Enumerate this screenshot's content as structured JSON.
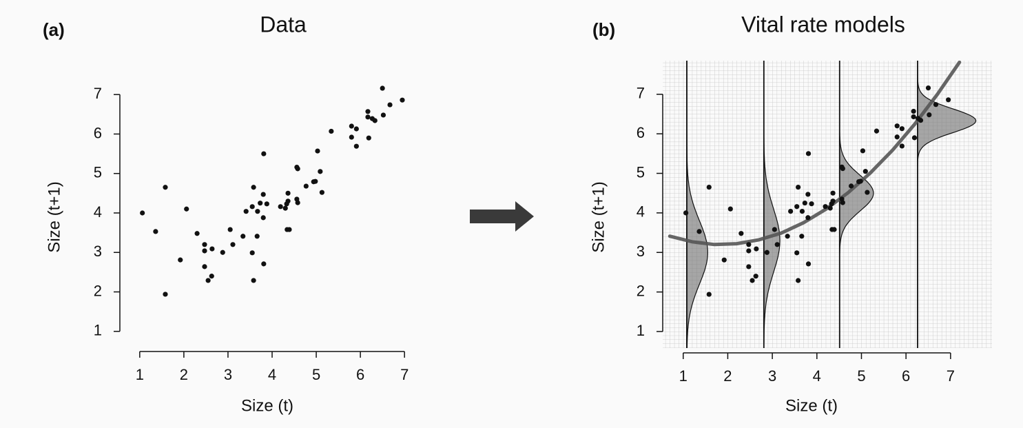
{
  "chart_data": [
    {
      "type": "scatter",
      "panel_label": "(a)",
      "title": "Data",
      "x_label": "Size (t)",
      "y_label": "Size (t+1)",
      "xlim": [
        0.55,
        7.2
      ],
      "ylim": [
        0.49,
        7.3
      ],
      "xticks": [
        1,
        2,
        3,
        4,
        5,
        6,
        7
      ],
      "yticks": [
        1,
        2,
        3,
        4,
        5,
        6,
        7
      ],
      "color": "#111111",
      "grid": false,
      "x": [
        1.06,
        1.36,
        1.58,
        1.58,
        1.92,
        2.06,
        2.3,
        2.47,
        2.47,
        2.47,
        2.55,
        2.63,
        2.64,
        2.88,
        3.05,
        3.11,
        3.34,
        3.41,
        3.55,
        3.58,
        3.55,
        3.58,
        3.67,
        3.66,
        3.73,
        3.8,
        3.8,
        3.81,
        3.81,
        3.88,
        4.19,
        4.3,
        4.33,
        4.36,
        4.36,
        4.34,
        4.39,
        4.56,
        4.58,
        4.58,
        4.56,
        4.77,
        4.94,
        4.98,
        5.03,
        5.09,
        5.13,
        5.34,
        5.8,
        5.8,
        5.91,
        5.91,
        6.17,
        6.17,
        6.19,
        6.27,
        6.33,
        6.5,
        6.52,
        6.67,
        6.95
      ],
      "y": [
        4.0,
        3.53,
        4.65,
        1.94,
        2.81,
        4.1,
        3.48,
        3.2,
        3.04,
        2.64,
        2.29,
        2.4,
        3.09,
        3.0,
        3.58,
        3.2,
        3.41,
        4.04,
        4.16,
        4.65,
        2.99,
        2.29,
        4.04,
        3.41,
        4.25,
        3.88,
        4.47,
        2.71,
        5.5,
        4.23,
        4.16,
        4.12,
        4.23,
        4.5,
        4.3,
        3.58,
        3.58,
        4.35,
        4.26,
        5.12,
        5.16,
        4.68,
        4.79,
        4.8,
        5.57,
        5.05,
        4.52,
        6.07,
        6.2,
        5.92,
        6.13,
        5.69,
        6.57,
        6.43,
        5.9,
        6.39,
        6.34,
        7.16,
        6.48,
        6.74,
        6.86
      ]
    },
    {
      "type": "scatter",
      "panel_label": "(b)",
      "title": "Vital rate models",
      "x_label": "Size (t)",
      "y_label": "Size (t+1)",
      "xlim": [
        0.54,
        7.93
      ],
      "ylim": [
        0.46,
        7.85
      ],
      "xticks": [
        1,
        2,
        3,
        4,
        5,
        6,
        7
      ],
      "yticks": [
        1,
        2,
        3,
        4,
        5,
        6,
        7
      ],
      "color": "#111111",
      "grid": true,
      "x": [
        1.06,
        1.36,
        1.58,
        1.58,
        1.92,
        2.06,
        2.3,
        2.47,
        2.47,
        2.47,
        2.55,
        2.63,
        2.64,
        2.88,
        3.05,
        3.11,
        3.34,
        3.41,
        3.55,
        3.58,
        3.55,
        3.58,
        3.67,
        3.66,
        3.73,
        3.8,
        3.8,
        3.81,
        3.81,
        3.88,
        4.19,
        4.3,
        4.33,
        4.36,
        4.36,
        4.34,
        4.39,
        4.56,
        4.58,
        4.58,
        4.56,
        4.77,
        4.94,
        4.98,
        5.03,
        5.09,
        5.13,
        5.34,
        5.8,
        5.8,
        5.91,
        5.91,
        6.17,
        6.17,
        6.19,
        6.27,
        6.33,
        6.5,
        6.52,
        6.67,
        6.95
      ],
      "y": [
        4.0,
        3.53,
        4.65,
        1.94,
        2.81,
        4.1,
        3.48,
        3.2,
        3.04,
        2.64,
        2.29,
        2.4,
        3.09,
        3.0,
        3.58,
        3.2,
        3.41,
        4.04,
        4.16,
        4.65,
        2.99,
        2.29,
        4.04,
        3.41,
        4.25,
        3.88,
        4.47,
        2.71,
        5.5,
        4.23,
        4.16,
        4.12,
        4.23,
        4.5,
        4.3,
        3.58,
        3.58,
        4.35,
        4.26,
        5.12,
        5.16,
        4.68,
        4.79,
        4.8,
        5.57,
        5.05,
        4.52,
        6.07,
        6.2,
        5.92,
        6.13,
        5.69,
        6.57,
        6.43,
        5.9,
        6.39,
        6.34,
        7.16,
        6.48,
        6.74,
        6.86
      ],
      "fit": {
        "color": "#555555",
        "x": [
          0.7,
          1.2,
          1.7,
          2.2,
          2.7,
          3.2,
          3.7,
          4.2,
          4.7,
          5.2,
          5.7,
          6.2,
          6.7,
          7.2
        ],
        "y": [
          3.41,
          3.27,
          3.2,
          3.22,
          3.32,
          3.49,
          3.75,
          4.09,
          4.51,
          5.01,
          5.59,
          6.25,
          6.99,
          7.81
        ]
      },
      "densities": [
        {
          "at": 1.08,
          "mean": 3.0,
          "sd": 0.8,
          "height": 0.47
        },
        {
          "at": 2.81,
          "mean": 3.3,
          "sd": 0.8,
          "height": 0.36
        },
        {
          "at": 4.51,
          "mean": 4.5,
          "sd": 0.45,
          "height": 0.76
        },
        {
          "at": 6.26,
          "mean": 6.33,
          "sd": 0.3,
          "height": 1.31
        }
      ]
    }
  ]
}
